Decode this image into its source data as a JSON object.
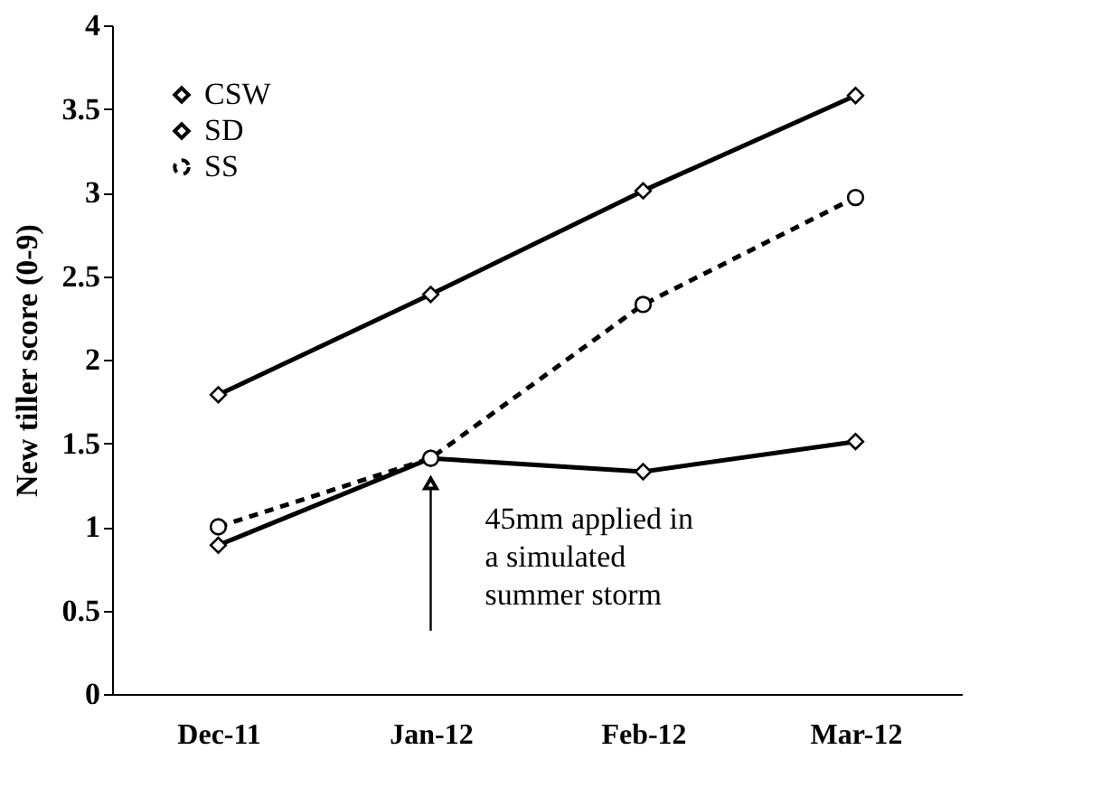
{
  "chart_data": {
    "type": "line",
    "ylabel": "New tiller score (0-9)",
    "categories": [
      "Dec-11",
      "Jan-12",
      "Feb-12",
      "Mar-12"
    ],
    "series": [
      {
        "name": "CSW",
        "color": "#000000",
        "values": [
          1.79,
          2.39,
          3.01,
          3.58
        ],
        "marker": "diamond",
        "line_style": "solid"
      },
      {
        "name": "SD",
        "color": "#000000",
        "values": [
          0.89,
          1.41,
          1.33,
          1.51
        ],
        "marker": "diamond",
        "line_style": "solid"
      },
      {
        "name": "SS",
        "color": "#000000",
        "values": [
          1.0,
          1.41,
          2.33,
          2.97
        ],
        "marker": "circle",
        "line_style": "dashed"
      }
    ],
    "ylim": [
      0,
      4
    ],
    "yticks": [
      0,
      0.5,
      1,
      1.5,
      2,
      2.5,
      3,
      3.5,
      4
    ],
    "grid": false,
    "legend": "top left",
    "annotations": [
      {
        "text": "45mm applied in\na simulated\nsummer storm",
        "x": "Jan-12",
        "y": 1.4
      }
    ]
  }
}
